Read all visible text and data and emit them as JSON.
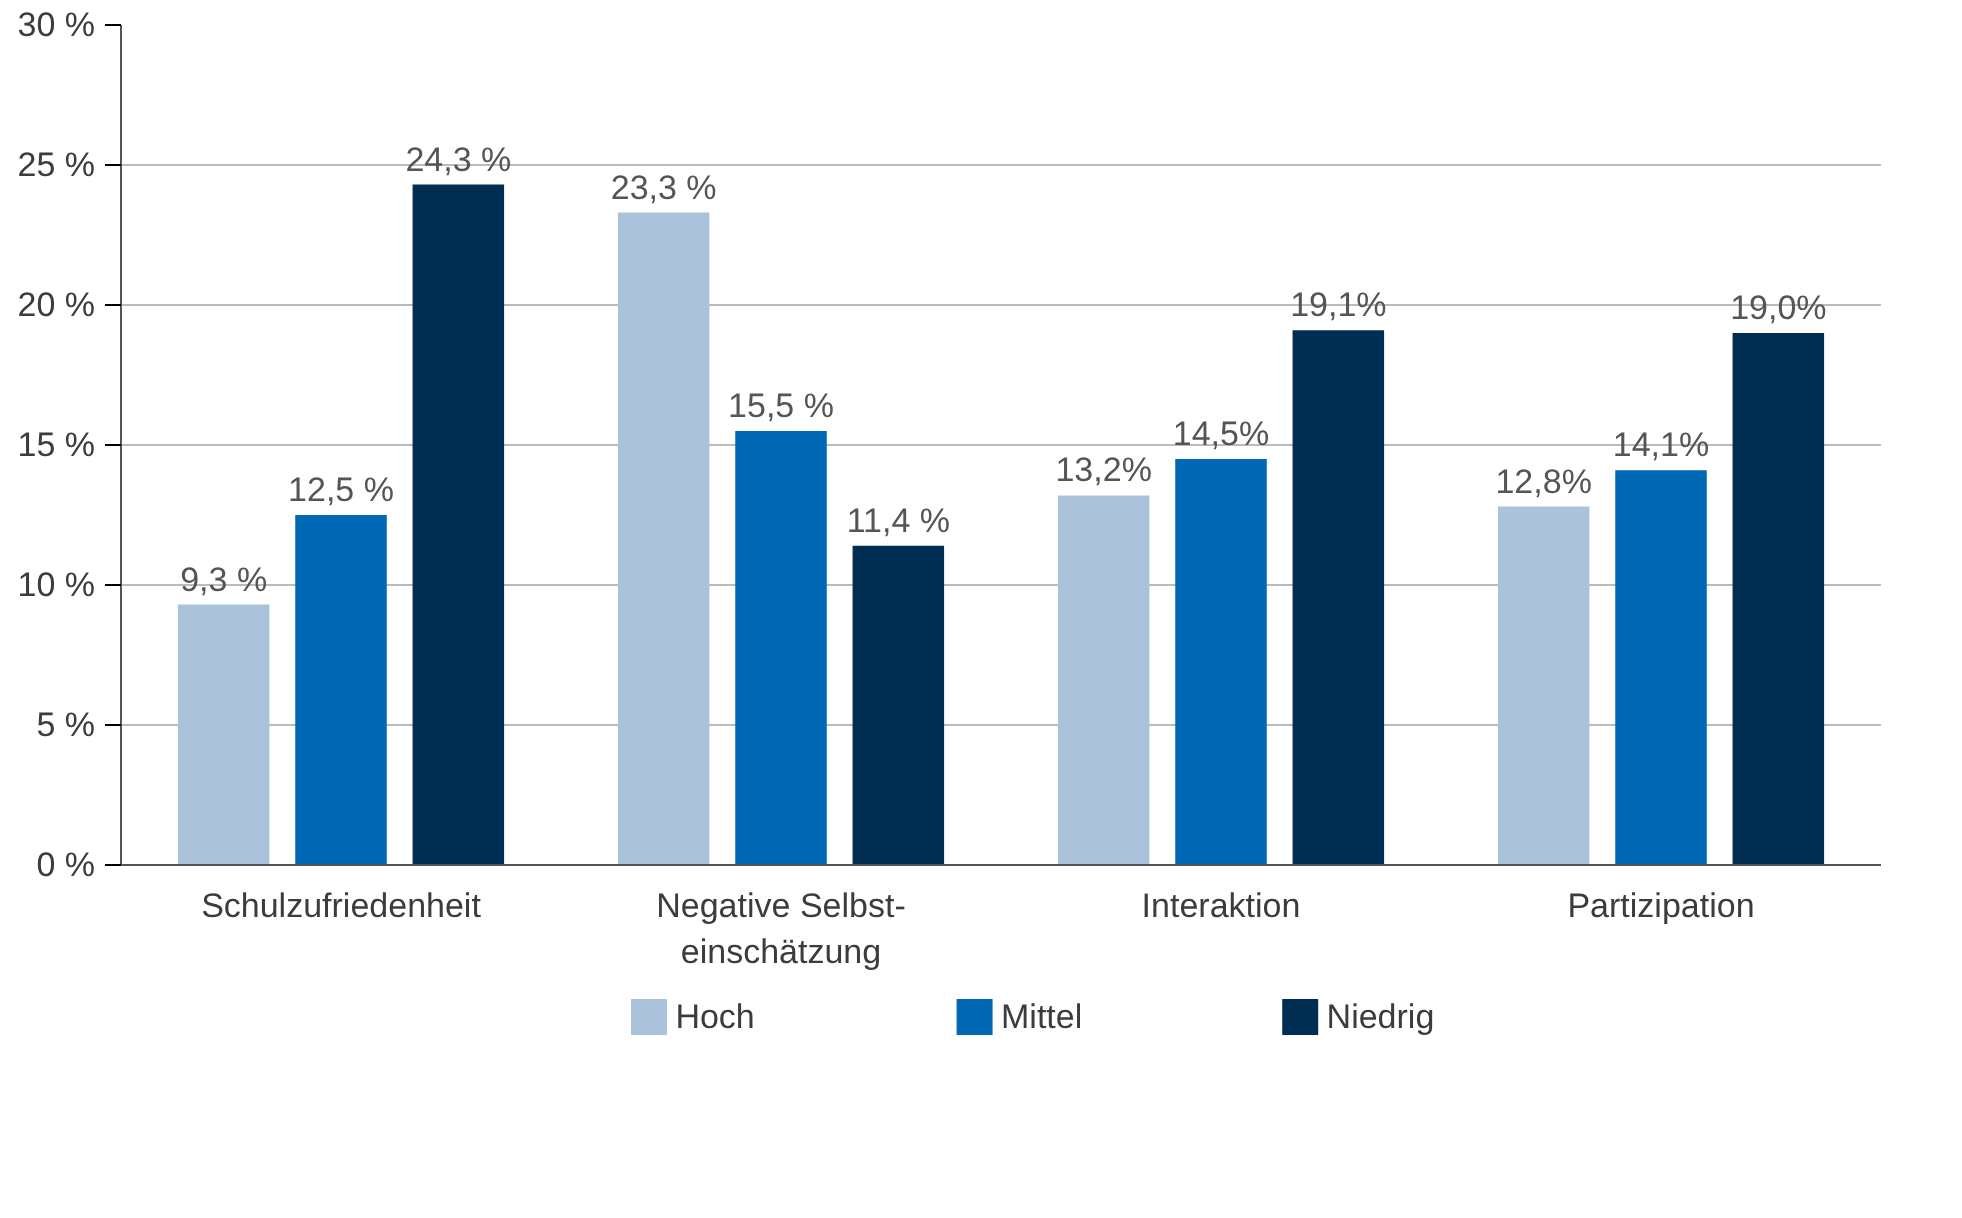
{
  "chart_data": {
    "type": "bar",
    "categories": [
      "Schulzufriedenheit",
      "Negative Selbst-\neinschätzung",
      "Interaktion",
      "Partizipation"
    ],
    "series": [
      {
        "name": "Hoch",
        "color": "#abc3da",
        "values": [
          9.3,
          23.3,
          13.2,
          12.8
        ],
        "value_labels": [
          "9,3 %",
          "23,3 %",
          "13,2%",
          "12,8%"
        ]
      },
      {
        "name": "Mittel",
        "color": "#0068b4",
        "values": [
          12.5,
          15.5,
          14.5,
          14.1
        ],
        "value_labels": [
          "12,5 %",
          "15,5 %",
          "14,5%",
          "14,1%"
        ]
      },
      {
        "name": "Niedrig",
        "color": "#002d52",
        "values": [
          24.3,
          11.4,
          19.1,
          19.0
        ],
        "value_labels": [
          "24,3 %",
          "11,4 %",
          "19,1%",
          "19,0%"
        ]
      }
    ],
    "ylim": [
      0,
      30
    ],
    "yticks": [
      {
        "value": 0,
        "label": "0 %"
      },
      {
        "value": 5,
        "label": "5 %"
      },
      {
        "value": 10,
        "label": "10 %"
      },
      {
        "value": 15,
        "label": "15 %"
      },
      {
        "value": 20,
        "label": "20 %"
      },
      {
        "value": 25,
        "label": "25 %"
      },
      {
        "value": 30,
        "label": "30 %"
      }
    ],
    "grid": "y",
    "legend": "bottom"
  }
}
